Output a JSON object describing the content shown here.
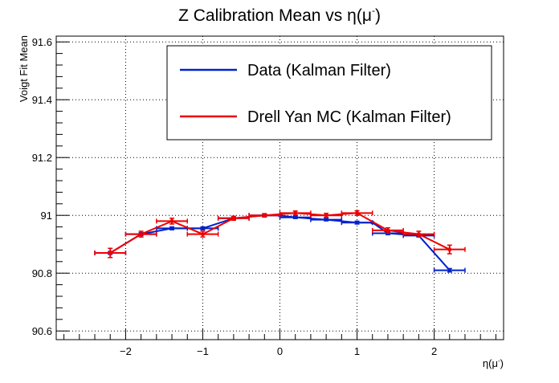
{
  "chart_data": {
    "type": "line",
    "title_main": "Z Calibration Mean vs ",
    "title_var": "η(μ",
    "title_sup": "-",
    "title_end": ")",
    "xlabel_main": "η(μ",
    "xlabel_sup": "-",
    "xlabel_end": ")",
    "ylabel": "Voigt Fit Mean",
    "xlim": [
      -2.9,
      2.9
    ],
    "ylim": [
      90.57,
      91.62
    ],
    "xticks": [
      -2,
      -1,
      0,
      1,
      2
    ],
    "xtick_labels": [
      "−2",
      "−1",
      "0",
      "1",
      "2"
    ],
    "yticks": [
      90.6,
      90.8,
      91,
      91.2,
      91.4,
      91.6
    ],
    "ytick_labels": [
      "90.6",
      "90.8",
      "91",
      "91.2",
      "91.4",
      "91.6"
    ],
    "grid": true,
    "legend_position": "top-right",
    "series": [
      {
        "name": "Data (Kalman Filter)",
        "color": "#0022cc",
        "x": [
          -2.2,
          -1.8,
          -1.4,
          -1.0,
          -0.6,
          -0.2,
          0.0,
          0.2,
          0.6,
          1.0,
          1.2,
          1.4,
          1.8,
          2.2
        ],
        "xerr": [
          0.2,
          0.2,
          0.2,
          0.2,
          0.2,
          0.2,
          0.0,
          0.2,
          0.2,
          0.2,
          0.0,
          0.2,
          0.2,
          0.2
        ],
        "y": [
          90.87,
          90.935,
          90.955,
          90.955,
          90.99,
          91.0,
          91.0,
          90.993,
          90.985,
          90.975,
          90.975,
          90.938,
          90.93,
          90.81
        ],
        "yerr": [
          0.005,
          0.005,
          0.005,
          0.005,
          0.004,
          0.004,
          0.0,
          0.004,
          0.004,
          0.005,
          0.0,
          0.005,
          0.005,
          0.006
        ]
      },
      {
        "name": "Drell Yan MC (Kalman Filter)",
        "color": "#ee0000",
        "x": [
          -2.2,
          -1.8,
          -1.4,
          -1.0,
          -0.6,
          -0.2,
          0.2,
          0.6,
          1.0,
          1.4,
          1.8,
          2.2
        ],
        "xerr": [
          0.2,
          0.2,
          0.2,
          0.2,
          0.2,
          0.2,
          0.2,
          0.2,
          0.2,
          0.2,
          0.2,
          0.2
        ],
        "y": [
          90.87,
          90.935,
          90.98,
          90.935,
          90.99,
          91.0,
          91.008,
          91.0,
          91.008,
          90.948,
          90.935,
          90.882
        ],
        "yerr": [
          0.016,
          0.01,
          0.01,
          0.01,
          0.007,
          0.006,
          0.007,
          0.007,
          0.008,
          0.009,
          0.01,
          0.015
        ]
      }
    ]
  }
}
